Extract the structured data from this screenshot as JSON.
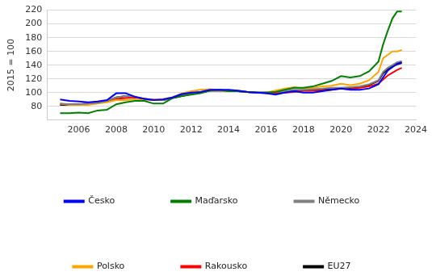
{
  "chart_data": {
    "type": "line",
    "y_label": "2015 = 100",
    "x": [
      2005,
      2005.5,
      2006,
      2006.5,
      2007,
      2007.5,
      2008,
      2008.5,
      2009,
      2009.5,
      2010,
      2010.5,
      2011,
      2011.5,
      2012,
      2012.5,
      2013,
      2013.5,
      2014,
      2014.5,
      2015,
      2015.5,
      2016,
      2016.5,
      2017,
      2017.5,
      2018,
      2018.5,
      2019,
      2019.5,
      2020,
      2020.5,
      2021,
      2021.5,
      2022,
      2022.25,
      2022.5,
      2022.75,
      2023,
      2023.25
    ],
    "series": [
      {
        "name": "Česko",
        "color": "#0000ff",
        "values": [
          90,
          88,
          87,
          86,
          87,
          89,
          99,
          99,
          94,
          91,
          89,
          90,
          93,
          98,
          100,
          101,
          104,
          104,
          104,
          103,
          101,
          100,
          99,
          97,
          100,
          102,
          100,
          100,
          102,
          104,
          106,
          104,
          104,
          106,
          112,
          122,
          132,
          137,
          142,
          144
        ]
      },
      {
        "name": "Maďarsko",
        "color": "#008000",
        "values": [
          70,
          70,
          71,
          70,
          74,
          75,
          83,
          86,
          88,
          88,
          84,
          84,
          92,
          95,
          97,
          99,
          103,
          104,
          102,
          102,
          101,
          100,
          100,
          101,
          104,
          107,
          107,
          109,
          113,
          117,
          124,
          122,
          124,
          131,
          145,
          170,
          190,
          208,
          218,
          218
        ]
      },
      {
        "name": "Německo",
        "color": "#808080",
        "values": [
          84,
          83,
          83,
          84,
          85,
          88,
          93,
          95,
          94,
          91,
          89,
          89,
          92,
          96,
          98,
          101,
          103,
          103,
          103,
          102,
          101,
          100,
          100,
          101,
          102,
          104,
          104,
          105,
          106,
          107,
          107,
          108,
          109,
          112,
          118,
          130,
          136,
          140,
          144,
          146
        ]
      },
      {
        "name": "Polsko",
        "color": "#ffa500",
        "values": [
          84,
          82,
          82,
          82,
          84,
          86,
          89,
          89,
          90,
          89,
          90,
          91,
          93,
          99,
          102,
          104,
          105,
          104,
          103,
          103,
          101,
          100,
          100,
          103,
          106,
          108,
          106,
          107,
          109,
          110,
          113,
          111,
          113,
          118,
          130,
          150,
          155,
          160,
          160,
          162
        ]
      },
      {
        "name": "Rakousko",
        "color": "#ff0000",
        "values": [
          83,
          83,
          83,
          84,
          85,
          87,
          91,
          92,
          93,
          91,
          90,
          90,
          93,
          96,
          98,
          100,
          103,
          103,
          103,
          102,
          101,
          100,
          99,
          99,
          100,
          101,
          103,
          103,
          103,
          104,
          106,
          105,
          107,
          109,
          113,
          119,
          125,
          129,
          133,
          136
        ]
      },
      {
        "name": "EU27",
        "color": "#000000",
        "values": [
          82,
          82,
          83,
          84,
          85,
          88,
          93,
          95,
          93,
          91,
          89,
          89,
          92,
          95,
          98,
          100,
          103,
          103,
          103,
          102,
          101,
          100,
          100,
          100,
          101,
          102,
          103,
          103,
          104,
          105,
          106,
          106,
          108,
          111,
          117,
          128,
          134,
          138,
          141,
          143
        ]
      }
    ],
    "xlim": [
      2004.3,
      2024
    ],
    "xticks": [
      2006,
      2008,
      2010,
      2012,
      2014,
      2016,
      2018,
      2020,
      2022,
      2024
    ],
    "ylim": [
      60,
      220
    ],
    "yticks": [
      80,
      100,
      120,
      140,
      160,
      180,
      200,
      220
    ],
    "grid": true,
    "legend": "bottom"
  }
}
